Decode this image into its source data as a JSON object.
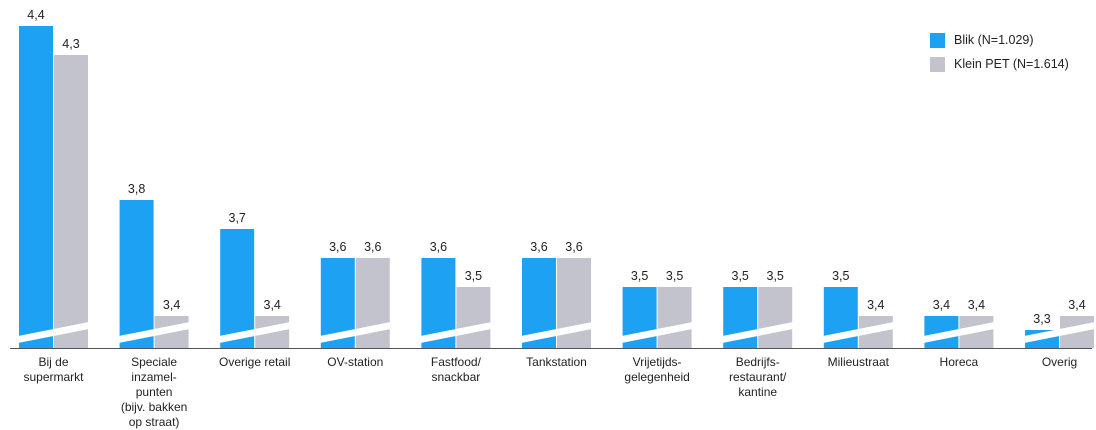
{
  "chart_data": {
    "type": "bar",
    "categories": [
      [
        "Bij de",
        "supermarkt"
      ],
      [
        "Speciale",
        "inzamel-",
        "punten",
        "(bijv. bakken",
        "op straat)"
      ],
      [
        "Overige retail"
      ],
      [
        "OV-station"
      ],
      [
        "Fastfood/",
        "snackbar"
      ],
      [
        "Tankstation"
      ],
      [
        "Vrijetijds-",
        "gelegenheid"
      ],
      [
        "Bedrijfs-",
        "restaurant/",
        "kantine"
      ],
      [
        "Milieustraat"
      ],
      [
        "Horeca"
      ],
      [
        "Overig"
      ]
    ],
    "series": [
      {
        "name": "Blik (N=1.029)",
        "color": "#1da1f2",
        "values": [
          4.4,
          3.8,
          3.7,
          3.6,
          3.6,
          3.6,
          3.5,
          3.5,
          3.5,
          3.4,
          3.3
        ],
        "labels": [
          "4,4",
          "3,8",
          "3,7",
          "3,6",
          "3,6",
          "3,6",
          "3,5",
          "3,5",
          "3,5",
          "3,4",
          "3,3"
        ]
      },
      {
        "name": "Klein PET (N=1.614)",
        "color": "#c3c3cd",
        "values": [
          4.3,
          3.4,
          3.4,
          3.6,
          3.5,
          3.6,
          3.5,
          3.5,
          3.4,
          3.4,
          3.4
        ],
        "labels": [
          "4,3",
          "3,4",
          "3,4",
          "3,6",
          "3,5",
          "3,6",
          "3,5",
          "3,5",
          "3,4",
          "3,4",
          "3,4"
        ]
      }
    ],
    "axis_break": true,
    "legend_position": "top-right",
    "grid": false
  }
}
